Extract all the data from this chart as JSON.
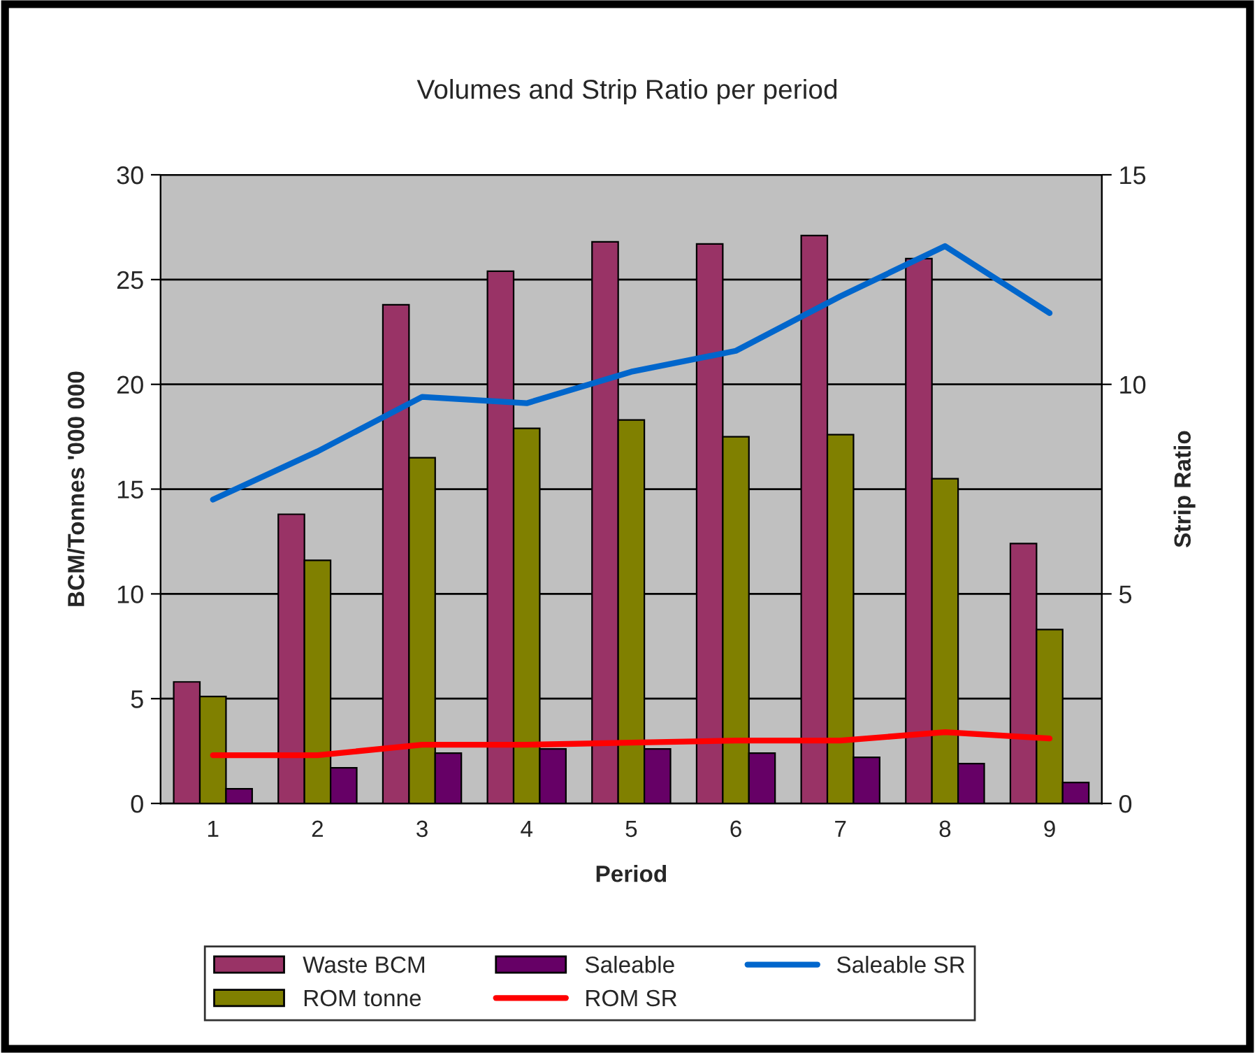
{
  "chart_data": {
    "type": "bar",
    "title": "Volumes and Strip Ratio per period",
    "xlabel": "Period",
    "ylabel": "BCM/Tonnes '000 000",
    "y2label": "Strip Ratio",
    "categories": [
      "1",
      "2",
      "3",
      "4",
      "5",
      "6",
      "7",
      "8",
      "9"
    ],
    "series": [
      {
        "name": "Waste BCM",
        "color": "#993366",
        "values": [
          5.8,
          13.8,
          23.8,
          25.4,
          26.8,
          26.7,
          27.1,
          26.0,
          12.4
        ]
      },
      {
        "name": "ROM tonne",
        "color": "#808000",
        "values": [
          5.1,
          11.6,
          16.5,
          17.9,
          18.3,
          17.5,
          17.6,
          15.5,
          8.3
        ]
      },
      {
        "name": "Saleable",
        "color": "#660066",
        "values": [
          0.7,
          1.7,
          2.4,
          2.6,
          2.6,
          2.4,
          2.2,
          1.9,
          1.0
        ]
      },
      {
        "name": "ROM SR",
        "color": "#ff0000",
        "type": "line",
        "axis": "y2",
        "values": [
          1.15,
          1.15,
          1.4,
          1.4,
          1.45,
          1.5,
          1.5,
          1.7,
          1.55
        ]
      },
      {
        "name": "Saleable SR",
        "color": "#0066cc",
        "type": "line",
        "axis": "y2",
        "values": [
          7.25,
          8.4,
          9.7,
          9.55,
          10.3,
          10.8,
          12.1,
          13.3,
          11.7
        ]
      }
    ],
    "ylim": [
      0,
      30
    ],
    "yticks": [
      0,
      5,
      10,
      15,
      20,
      25,
      30
    ],
    "y2lim": [
      0,
      15
    ],
    "y2ticks": [
      0,
      5,
      10,
      15
    ],
    "grid": "y",
    "legend": "bottom",
    "marker": "none",
    "line_style": "solid"
  }
}
